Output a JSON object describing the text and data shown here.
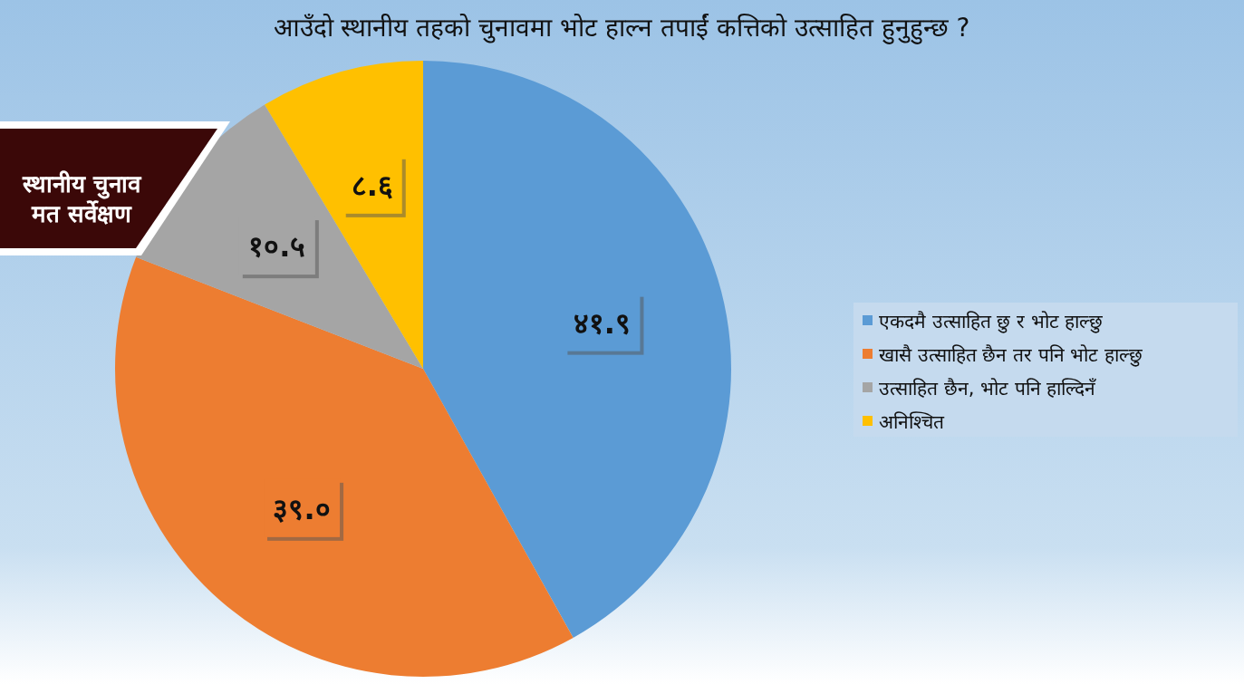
{
  "chart_data": {
    "type": "pie",
    "title": "आउँदो स्थानीय तहको चुनावमा भोट हाल्न तपाईं कत्तिको उत्साहित हुनुहुन्छ ?",
    "categories": [
      "एकदमै उत्साहित छु र भोट हाल्छु",
      "खासै उत्साहित छैन तर पनि भोट हाल्छु",
      "उत्साहित छैन, भोट पनि हाल्दिनँ",
      "अनिश्चित"
    ],
    "values": [
      41.9,
      39.0,
      10.5,
      8.6
    ],
    "colors": [
      "#5b9bd5",
      "#ed7d31",
      "#a5a5a5",
      "#ffc000"
    ],
    "value_labels": [
      "४१.९",
      "३९.०",
      "१०.५",
      "८.६"
    ],
    "legend": "right",
    "annotations": [
      "स्थानीय चुनाव मत सर्वेक्षण"
    ]
  }
}
